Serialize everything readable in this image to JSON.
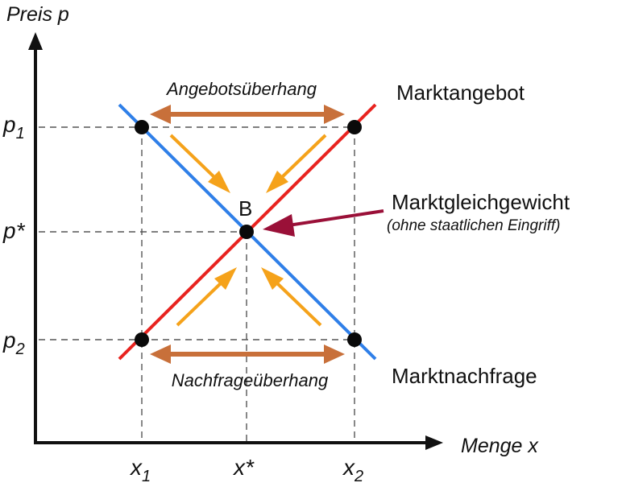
{
  "axes": {
    "y_label": "Preis p",
    "x_label": "Menge x",
    "y_ticks": [
      {
        "base": "p",
        "sub": "1"
      },
      {
        "base": "p*",
        "sub": ""
      },
      {
        "base": "p",
        "sub": "2"
      }
    ],
    "x_ticks": [
      {
        "base": "x",
        "sub": "1"
      },
      {
        "base": "x*",
        "sub": ""
      },
      {
        "base": "x",
        "sub": "2"
      }
    ]
  },
  "curves": {
    "supply_label": "Marktangebot",
    "demand_label": "Marktnachfrage",
    "supply_color": "#e8231f",
    "demand_color": "#2f7fe8"
  },
  "equilibrium": {
    "point_label": "B",
    "title": "Marktgleichgewicht",
    "subtitle": "(ohne staatlichen Eingriff)",
    "arrow_color": "#9a1038"
  },
  "surplus": {
    "upper_label": "Angebotsüberhang",
    "lower_label": "Nachfrageüberhang",
    "arrow_color": "#c8703a"
  },
  "convergence_arrow_color": "#f5a21a"
}
